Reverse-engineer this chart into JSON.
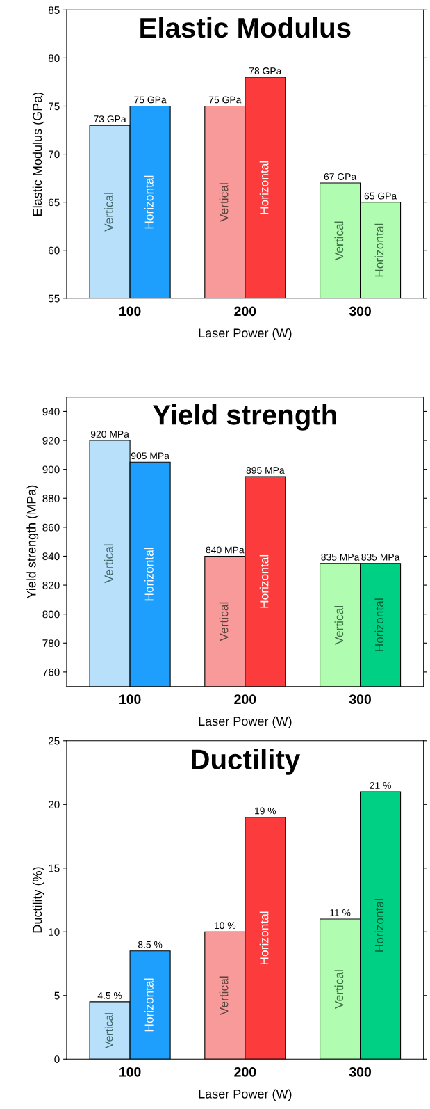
{
  "chart_data": [
    {
      "type": "bar",
      "title": "Elastic Modulus",
      "xlabel": "Laser Power (W)",
      "ylabel": "Elastic Modulus (GPa)",
      "categories": [
        "100",
        "200",
        "300"
      ],
      "ylim": [
        55,
        85
      ],
      "yticks": [
        55,
        60,
        65,
        70,
        75,
        80,
        85
      ],
      "legend": false,
      "grid": false,
      "series": [
        {
          "name": "Vertical",
          "colors": [
            "#b8e0fb",
            "#f99a9a",
            "#b0fcb0"
          ],
          "values": [
            73,
            75,
            67
          ],
          "value_labels": [
            "73 GPa",
            "75 GPa",
            "67 GPa"
          ]
        },
        {
          "name": "Horizontal",
          "colors": [
            "#1e9ffd",
            "#fc3c3c",
            "#b0fcb0"
          ],
          "values": [
            75,
            78,
            65
          ],
          "value_labels": [
            "75 GPa",
            "78 GPa",
            "65 GPa"
          ]
        }
      ]
    },
    {
      "type": "bar",
      "title": "Yield strength",
      "xlabel": "Laser Power (W)",
      "ylabel": "Yield strength (MPa)",
      "categories": [
        "100",
        "200",
        "300"
      ],
      "ylim": [
        750,
        950
      ],
      "yticks": [
        760,
        780,
        800,
        820,
        840,
        860,
        880,
        900,
        920,
        940
      ],
      "legend": false,
      "grid": false,
      "series": [
        {
          "name": "Vertical",
          "colors": [
            "#b8e0fb",
            "#f99a9a",
            "#b0fcb0"
          ],
          "values": [
            920,
            840,
            835
          ],
          "value_labels": [
            "920 MPa",
            "840 MPa",
            "835 MPa"
          ]
        },
        {
          "name": "Horizontal",
          "colors": [
            "#1e9ffd",
            "#fc3c3c",
            "#00d084"
          ],
          "values": [
            905,
            895,
            835
          ],
          "value_labels": [
            "905 MPa",
            "895 MPa",
            "835 MPa"
          ]
        }
      ]
    },
    {
      "type": "bar",
      "title": "Ductility",
      "xlabel": "Laser Power (W)",
      "ylabel": "Ductility (%)",
      "categories": [
        "100",
        "200",
        "300"
      ],
      "ylim": [
        0,
        25
      ],
      "yticks": [
        0,
        5,
        10,
        15,
        20,
        25
      ],
      "legend": false,
      "grid": false,
      "series": [
        {
          "name": "Vertical",
          "colors": [
            "#b8e0fb",
            "#f99a9a",
            "#b0fcb0"
          ],
          "values": [
            4.5,
            10,
            11
          ],
          "value_labels": [
            "4.5 %",
            "10 %",
            "11 %"
          ]
        },
        {
          "name": "Horizontal",
          "colors": [
            "#1e9ffd",
            "#fc3c3c",
            "#00d084"
          ],
          "values": [
            8.5,
            19,
            21
          ],
          "value_labels": [
            "8.5 %",
            "19 %",
            "21 %"
          ]
        }
      ]
    }
  ]
}
